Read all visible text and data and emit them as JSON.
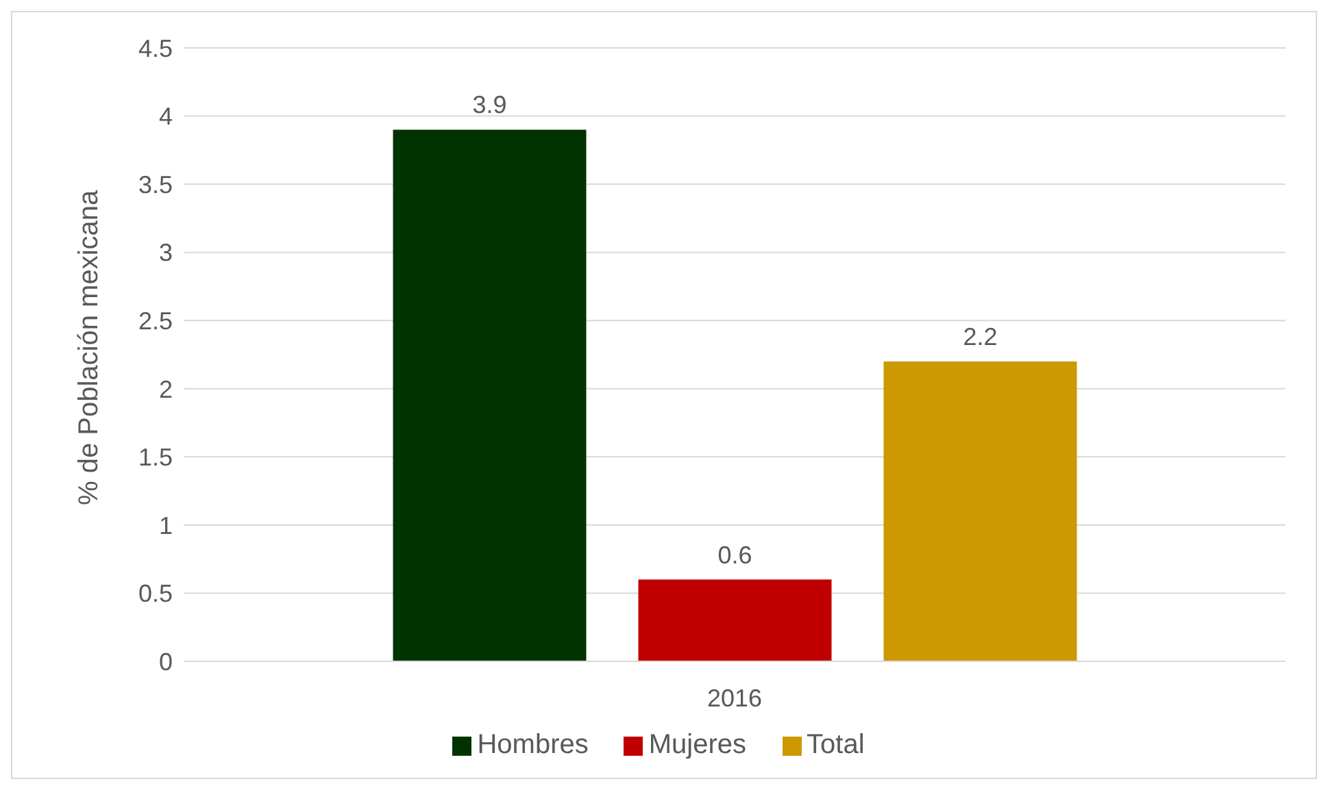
{
  "chart_data": {
    "type": "bar",
    "ylabel": "% de Población mexicana",
    "categories": [
      "2016"
    ],
    "series": [
      {
        "name": "Hombres",
        "color": "#003300",
        "values": [
          3.9
        ]
      },
      {
        "name": "Mujeres",
        "color": "#c00000",
        "values": [
          0.6
        ]
      },
      {
        "name": "Total",
        "color": "#cc9900",
        "values": [
          2.2
        ]
      }
    ],
    "ylim": [
      0,
      4.5
    ],
    "yticks": [
      0,
      0.5,
      1,
      1.5,
      2,
      2.5,
      3,
      3.5,
      4,
      4.5
    ],
    "grid": "y",
    "legend": "bottom",
    "data_labels": true
  }
}
